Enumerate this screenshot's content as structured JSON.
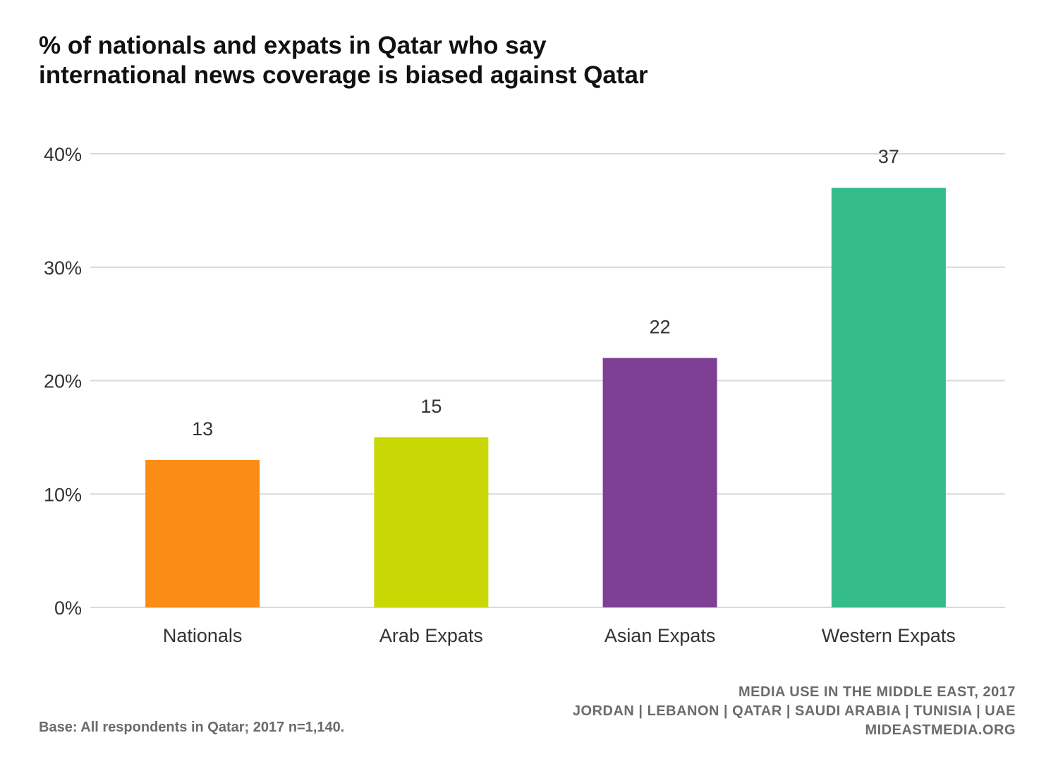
{
  "title_lines": [
    "% of nationals and expats in Qatar who say",
    "international news coverage is biased against Qatar"
  ],
  "footer": {
    "base_note": "Base: All respondents in Qatar; 2017 n=1,140.",
    "source_lines": [
      "MEDIA USE IN THE MIDDLE EAST, 2017",
      "JORDAN | LEBANON | QATAR | SAUDI ARABIA | TUNISIA | UAE",
      "MIDEASTMEDIA.ORG"
    ]
  },
  "chart_data": {
    "type": "bar",
    "categories": [
      "Nationals",
      "Arab Expats",
      "Asian Expats",
      "Western Expats"
    ],
    "values": [
      13,
      15,
      22,
      37
    ],
    "colors": [
      "#fb8c16",
      "#c9d804",
      "#7e3f95",
      "#33bb8b"
    ],
    "ylim": [
      0,
      40
    ],
    "yticks": [
      0,
      10,
      20,
      30,
      40
    ],
    "ytick_labels": [
      "0%",
      "10%",
      "20%",
      "30%",
      "40%"
    ],
    "grid": true,
    "gridline_color": "#d9d9d9",
    "xlabel": "",
    "ylabel": ""
  }
}
